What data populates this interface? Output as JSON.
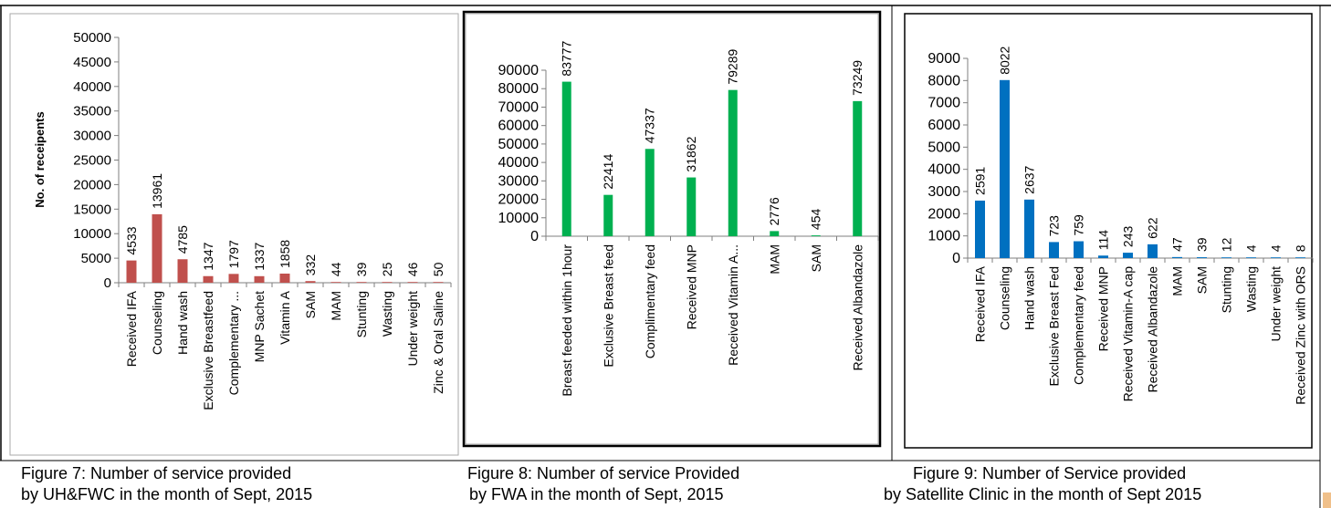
{
  "charts": [
    {
      "type": "bar",
      "color": "#c0504d",
      "ylabel": "No. of receipents",
      "ylim": [
        0,
        50000
      ],
      "yticks": [
        0,
        5000,
        10000,
        15000,
        20000,
        25000,
        30000,
        35000,
        40000,
        45000,
        50000
      ],
      "categories": [
        "Received IFA",
        "Counseling",
        "Hand wash",
        "Exclusive Breastfeed",
        "Complementary ...",
        "MNP Sachet",
        "Vitamin A",
        "SAM",
        "MAM",
        "Stunting",
        "Wasting",
        "Under weight",
        "Zinc & Oral Saline"
      ],
      "values": [
        4533,
        13961,
        4785,
        1347,
        1797,
        1337,
        1858,
        332,
        44,
        39,
        25,
        46,
        50
      ],
      "caption": [
        "Figure 7: Number of service provided",
        "by UH&FWC in the month of Sept, 2015"
      ]
    },
    {
      "type": "bar",
      "color": "#00b050",
      "ylabel": "",
      "ylim": [
        0,
        90000
      ],
      "yticks": [
        0,
        10000,
        20000,
        30000,
        40000,
        50000,
        60000,
        70000,
        80000,
        90000
      ],
      "categories": [
        "Breast feeded  within 1hour",
        "Exclusive Breast feed",
        "Complimentary  feed",
        "Received MNP",
        "Received Vitamin A...",
        "MAM",
        "SAM",
        "Received Albandazole"
      ],
      "values": [
        83777,
        22414,
        47337,
        31862,
        79289,
        2776,
        454,
        73249
      ],
      "caption": [
        "Figure 8: Number of service Provided",
        "by FWA in the month of Sept, 2015"
      ]
    },
    {
      "type": "bar",
      "color": "#0070c0",
      "ylabel": "",
      "ylim": [
        0,
        9000
      ],
      "yticks": [
        0,
        1000,
        2000,
        3000,
        4000,
        5000,
        6000,
        7000,
        8000,
        9000
      ],
      "categories": [
        "Received IFA",
        "Counseling",
        "Hand wash",
        "Exclusive  Breast Fed",
        "Complementary  feed",
        "Received MNP",
        "Received Vitamin-A cap",
        "Received Albandazole",
        "MAM",
        "SAM",
        "Stunting",
        "Wasting",
        "Under weight",
        "Received  Zinc with ORS"
      ],
      "values": [
        2591,
        8022,
        2637,
        723,
        759,
        114,
        243,
        622,
        47,
        39,
        12,
        4,
        4,
        8
      ],
      "caption": [
        "Figure 9: Number of Service provided",
        "by Satellite Clinic in the month of Sept 2015"
      ]
    }
  ]
}
